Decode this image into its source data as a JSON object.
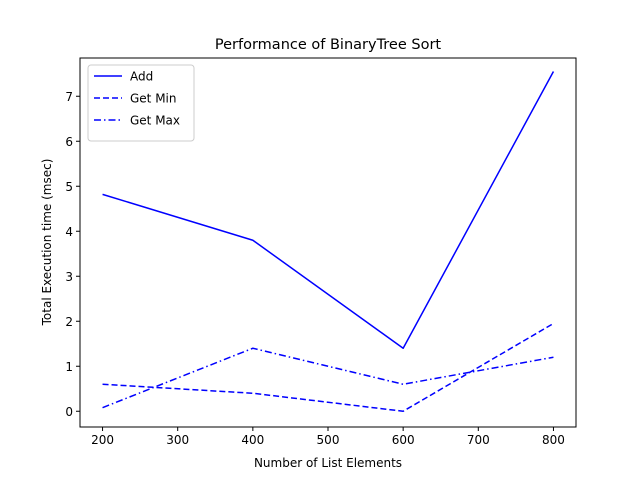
{
  "chart_data": {
    "type": "line",
    "title": "Performance of BinaryTree Sort",
    "xlabel": "Number of List Elements",
    "ylabel": "Total Execution time (msec)",
    "x": [
      200,
      400,
      600,
      800
    ],
    "xlim": [
      170,
      830
    ],
    "ylim": [
      -0.35,
      7.85
    ],
    "xticks": [
      200,
      300,
      400,
      500,
      600,
      700,
      800
    ],
    "yticks": [
      0,
      1,
      2,
      3,
      4,
      5,
      6,
      7
    ],
    "grid": false,
    "legend_position": "top-left",
    "color": "#0000ff",
    "series": [
      {
        "name": "Add",
        "style": "solid",
        "values": [
          4.82,
          3.8,
          1.4,
          7.55
        ]
      },
      {
        "name": "Get Min",
        "style": "dashed",
        "values": [
          0.6,
          0.4,
          0.0,
          1.95
        ]
      },
      {
        "name": "Get Max",
        "style": "dashdot",
        "values": [
          0.08,
          1.4,
          0.6,
          1.2
        ]
      }
    ]
  }
}
